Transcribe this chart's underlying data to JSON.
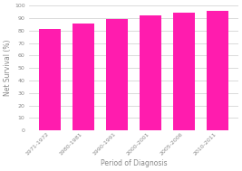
{
  "categories": [
    "1971-1972",
    "1980-1981",
    "1990-1991",
    "2000-2001",
    "2005-2006",
    "2010-2011"
  ],
  "values": [
    81.5,
    85.5,
    89.5,
    92.5,
    94.5,
    96.0
  ],
  "bar_color": "#FF1CAE",
  "xlabel": "Period of Diagnosis",
  "ylabel": "Net Survival (%)",
  "ylim": [
    0,
    100
  ],
  "yticks": [
    0,
    10,
    20,
    30,
    40,
    50,
    60,
    70,
    80,
    90,
    100
  ],
  "background_color": "#ffffff",
  "grid_color": "#cccccc",
  "tick_label_fontsize": 4.5,
  "axis_label_fontsize": 5.5,
  "bar_width": 0.65
}
